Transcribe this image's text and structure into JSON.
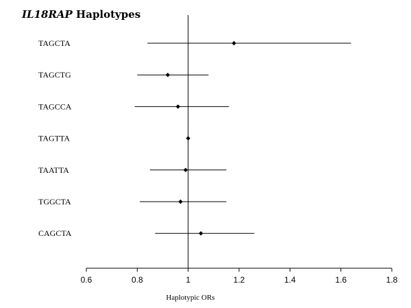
{
  "chart_data": {
    "type": "forest",
    "title_italic": "IL18RAP",
    "title_rest": " Haplotypes",
    "xlabel": "Haplotypic ORs",
    "xlim": [
      0.6,
      1.8
    ],
    "xticks": [
      0.6,
      0.8,
      1.0,
      1.2,
      1.4,
      1.6,
      1.8
    ],
    "xtick_labels": [
      "0.6",
      "0.8",
      "1",
      "1.2",
      "1.4",
      "1.6",
      "1.8"
    ],
    "reference_line": 1.0,
    "rows": [
      {
        "label": "TAGCTA",
        "or": 1.18,
        "lower": 0.84,
        "upper": 1.64
      },
      {
        "label": "TAGCTG",
        "or": 0.92,
        "lower": 0.8,
        "upper": 1.08
      },
      {
        "label": "TAGCCA",
        "or": 0.96,
        "lower": 0.79,
        "upper": 1.16
      },
      {
        "label": "TAGTTA",
        "or": 1.0,
        "lower": 1.0,
        "upper": 1.0
      },
      {
        "label": "TAATTA",
        "or": 0.99,
        "lower": 0.85,
        "upper": 1.15
      },
      {
        "label": "TGGCTA",
        "or": 0.97,
        "lower": 0.81,
        "upper": 1.15
      },
      {
        "label": "CAGCTA",
        "or": 1.05,
        "lower": 0.87,
        "upper": 1.26
      }
    ]
  }
}
